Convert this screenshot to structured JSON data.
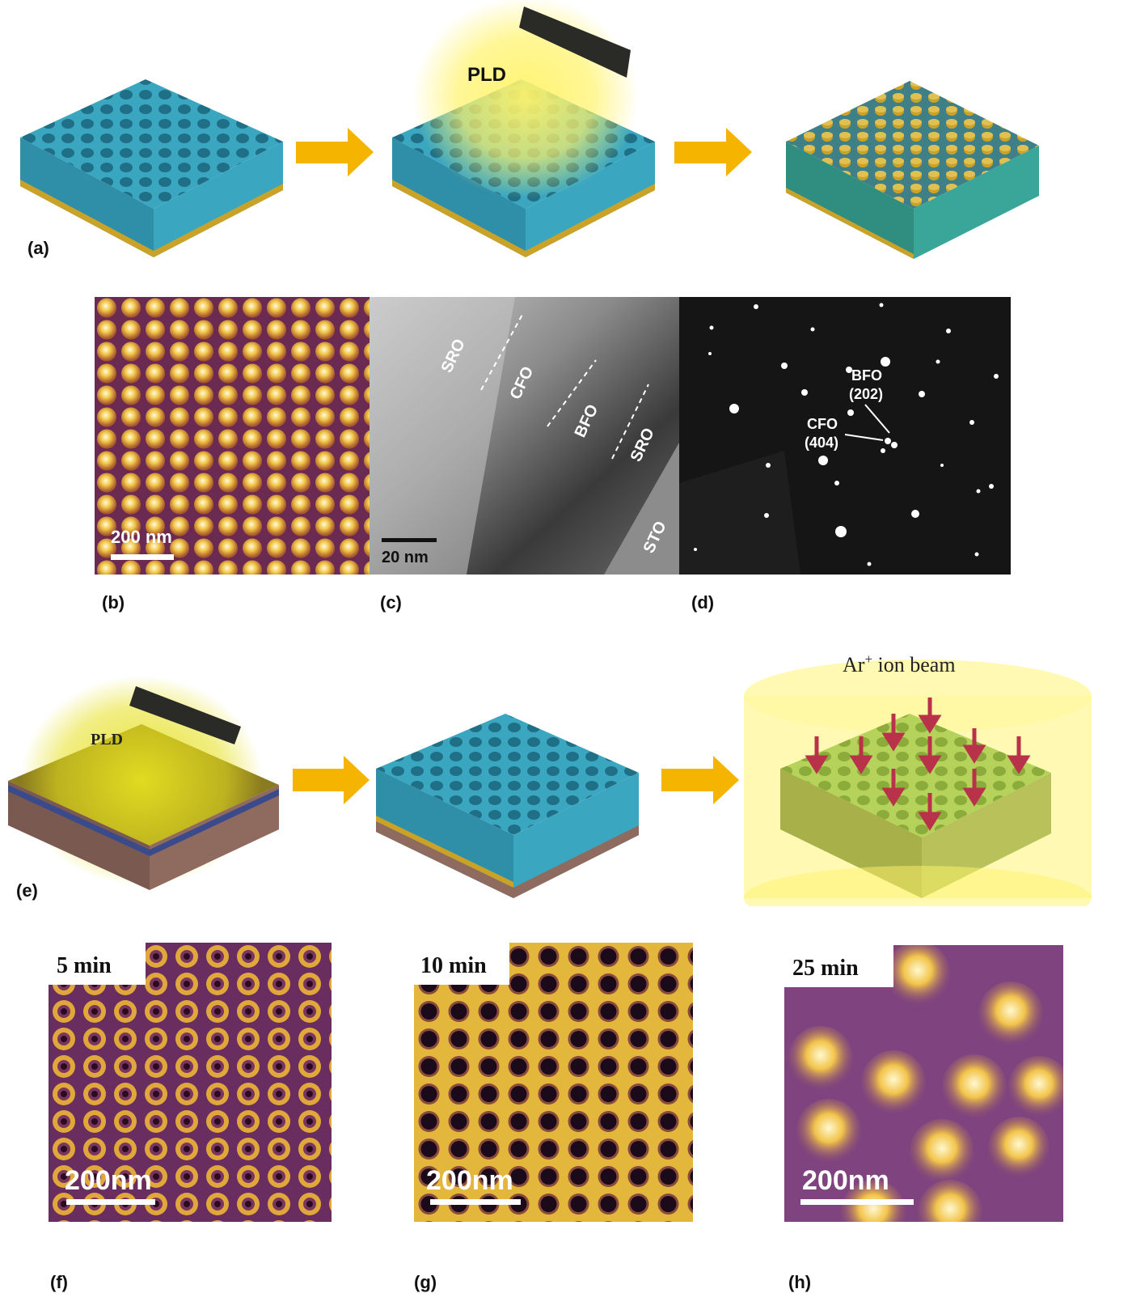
{
  "panels": {
    "a": "(a)",
    "b": "(b)",
    "c": "(c)",
    "d": "(d)",
    "e": "(e)",
    "f": "(f)",
    "g": "(g)",
    "h": "(h)"
  },
  "row1": {
    "pld": "PLD"
  },
  "afm_b": {
    "scale": "200 nm"
  },
  "tem_c": {
    "labels": [
      "SRO",
      "CFO",
      "BFO",
      "SRO",
      "STO"
    ],
    "scale": "20 nm"
  },
  "saed_d": {
    "bfo": "BFO",
    "bfo_index": "(202)",
    "cfo": "CFO",
    "cfo_index": "(404)"
  },
  "row3": {
    "pld": "PLD",
    "ion_beam": "Ar",
    "ion_sup": "+",
    "ion_rest": " ion beam"
  },
  "afm_f": {
    "time": "5 min",
    "scale": "200nm"
  },
  "afm_g": {
    "time": "10 min",
    "scale": "200nm"
  },
  "afm_h": {
    "time": "25 min",
    "scale": "200nm"
  },
  "colors": {
    "template": "#3aa6c0",
    "arrow": "#f5b400",
    "gold": "#c9a227",
    "afm_bg": "#5a2a6a",
    "afm_bright": "#ffe88a",
    "ion_arrow": "#b8334a"
  }
}
